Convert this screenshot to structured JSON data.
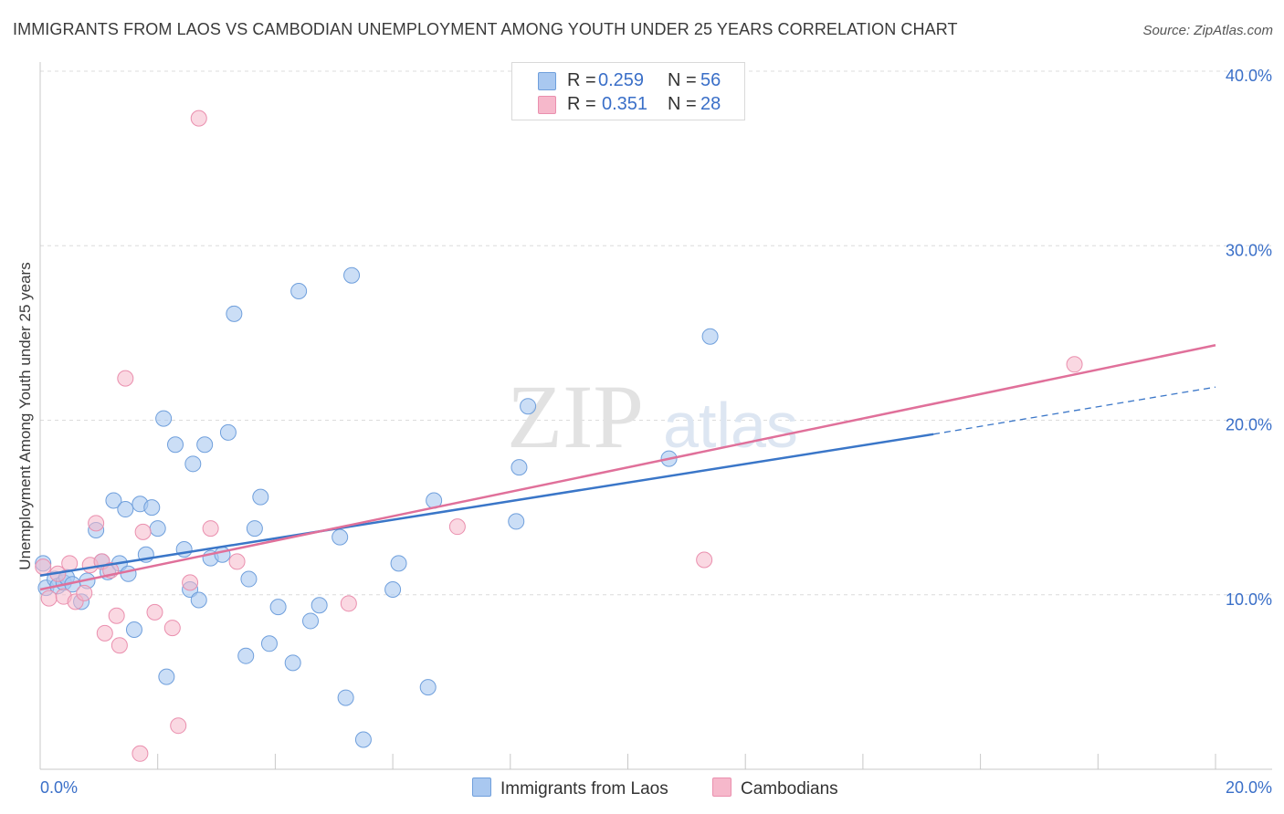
{
  "header": {
    "title": "IMMIGRANTS FROM LAOS VS CAMBODIAN UNEMPLOYMENT AMONG YOUTH UNDER 25 YEARS CORRELATION CHART",
    "source": "Source: ZipAtlas.com"
  },
  "watermark": {
    "zip": "ZIP",
    "atlas": "atlas"
  },
  "legend": {
    "series": [
      {
        "r_label": "R =",
        "r_value": "0.259",
        "n_label": "N =",
        "n_value": "56"
      },
      {
        "r_label": "R =",
        "r_value": "0.351",
        "n_label": "N =",
        "n_value": "28"
      }
    ]
  },
  "bottom_legend": {
    "laos": "Immigrants from Laos",
    "cambodians": "Cambodians"
  },
  "colors": {
    "laos_fill": "#a9c8f0",
    "laos_stroke": "#6f9fdc",
    "laos_line": "#3a76c8",
    "cambodian_fill": "#f6b8cb",
    "cambodian_stroke": "#ea8fae",
    "cambodian_line": "#e0709a",
    "tick_text": "#3a6fc8",
    "grid": "#dcdcdc"
  },
  "chart_data": {
    "type": "scatter",
    "title": "IMMIGRANTS FROM LAOS VS CAMBODIAN UNEMPLOYMENT AMONG YOUTH UNDER 25 YEARS CORRELATION CHART",
    "xlabel": "",
    "ylabel": "Unemployment Among Youth under 25 years",
    "xlim": [
      0,
      20
    ],
    "ylim": [
      0,
      40
    ],
    "x_tick_labels": [
      "0.0%",
      "20.0%"
    ],
    "y_ticks": [
      10,
      20,
      30,
      40
    ],
    "y_tick_labels": [
      "10.0%",
      "20.0%",
      "30.0%",
      "40.0%"
    ],
    "series": [
      {
        "name": "Immigrants from Laos",
        "r": 0.259,
        "n": 56,
        "trend": {
          "x": [
            0,
            15.2
          ],
          "y": [
            11.1,
            19.2
          ]
        },
        "trend_dashed": {
          "x": [
            15.2,
            20
          ],
          "y": [
            19.2,
            21.9
          ]
        },
        "points": [
          [
            0.05,
            11.8
          ],
          [
            0.1,
            10.4
          ],
          [
            0.25,
            10.9
          ],
          [
            0.3,
            10.5
          ],
          [
            0.4,
            10.7
          ],
          [
            0.45,
            11.0
          ],
          [
            0.55,
            10.6
          ],
          [
            0.7,
            9.6
          ],
          [
            0.8,
            10.8
          ],
          [
            0.95,
            13.7
          ],
          [
            1.05,
            11.9
          ],
          [
            1.15,
            11.3
          ],
          [
            1.25,
            15.4
          ],
          [
            1.35,
            11.8
          ],
          [
            1.45,
            14.9
          ],
          [
            1.5,
            11.2
          ],
          [
            1.6,
            8.0
          ],
          [
            1.7,
            15.2
          ],
          [
            1.8,
            12.3
          ],
          [
            1.9,
            15.0
          ],
          [
            2.0,
            13.8
          ],
          [
            2.1,
            20.1
          ],
          [
            2.15,
            5.3
          ],
          [
            2.3,
            18.6
          ],
          [
            2.45,
            12.6
          ],
          [
            2.55,
            10.3
          ],
          [
            2.6,
            17.5
          ],
          [
            2.7,
            9.7
          ],
          [
            2.8,
            18.6
          ],
          [
            2.9,
            12.1
          ],
          [
            3.1,
            12.3
          ],
          [
            3.2,
            19.3
          ],
          [
            3.3,
            26.1
          ],
          [
            3.5,
            6.5
          ],
          [
            3.55,
            10.9
          ],
          [
            3.65,
            13.8
          ],
          [
            3.75,
            15.6
          ],
          [
            3.9,
            7.2
          ],
          [
            4.05,
            9.3
          ],
          [
            4.3,
            6.1
          ],
          [
            4.4,
            27.4
          ],
          [
            4.6,
            8.5
          ],
          [
            4.75,
            9.4
          ],
          [
            5.1,
            13.3
          ],
          [
            5.2,
            4.1
          ],
          [
            5.3,
            28.3
          ],
          [
            5.5,
            1.7
          ],
          [
            6.0,
            10.3
          ],
          [
            6.1,
            11.8
          ],
          [
            6.6,
            4.7
          ],
          [
            6.7,
            15.4
          ],
          [
            8.1,
            14.2
          ],
          [
            8.15,
            17.3
          ],
          [
            8.3,
            20.8
          ],
          [
            10.7,
            17.8
          ],
          [
            11.4,
            24.8
          ]
        ]
      },
      {
        "name": "Cambodians",
        "r": 0.351,
        "n": 28,
        "trend": {
          "x": [
            0,
            20
          ],
          "y": [
            10.3,
            24.3
          ]
        },
        "points": [
          [
            0.05,
            11.6
          ],
          [
            0.15,
            9.8
          ],
          [
            0.3,
            11.2
          ],
          [
            0.4,
            9.9
          ],
          [
            0.5,
            11.8
          ],
          [
            0.6,
            9.6
          ],
          [
            0.75,
            10.1
          ],
          [
            0.85,
            11.7
          ],
          [
            0.95,
            14.1
          ],
          [
            1.05,
            11.9
          ],
          [
            1.1,
            7.8
          ],
          [
            1.2,
            11.4
          ],
          [
            1.3,
            8.8
          ],
          [
            1.35,
            7.1
          ],
          [
            1.45,
            22.4
          ],
          [
            1.7,
            0.9
          ],
          [
            1.75,
            13.6
          ],
          [
            1.95,
            9.0
          ],
          [
            2.25,
            8.1
          ],
          [
            2.35,
            2.5
          ],
          [
            2.55,
            10.7
          ],
          [
            2.7,
            37.3
          ],
          [
            2.9,
            13.8
          ],
          [
            3.35,
            11.9
          ],
          [
            5.25,
            9.5
          ],
          [
            7.1,
            13.9
          ],
          [
            11.3,
            12.0
          ],
          [
            17.6,
            23.2
          ]
        ]
      }
    ]
  }
}
